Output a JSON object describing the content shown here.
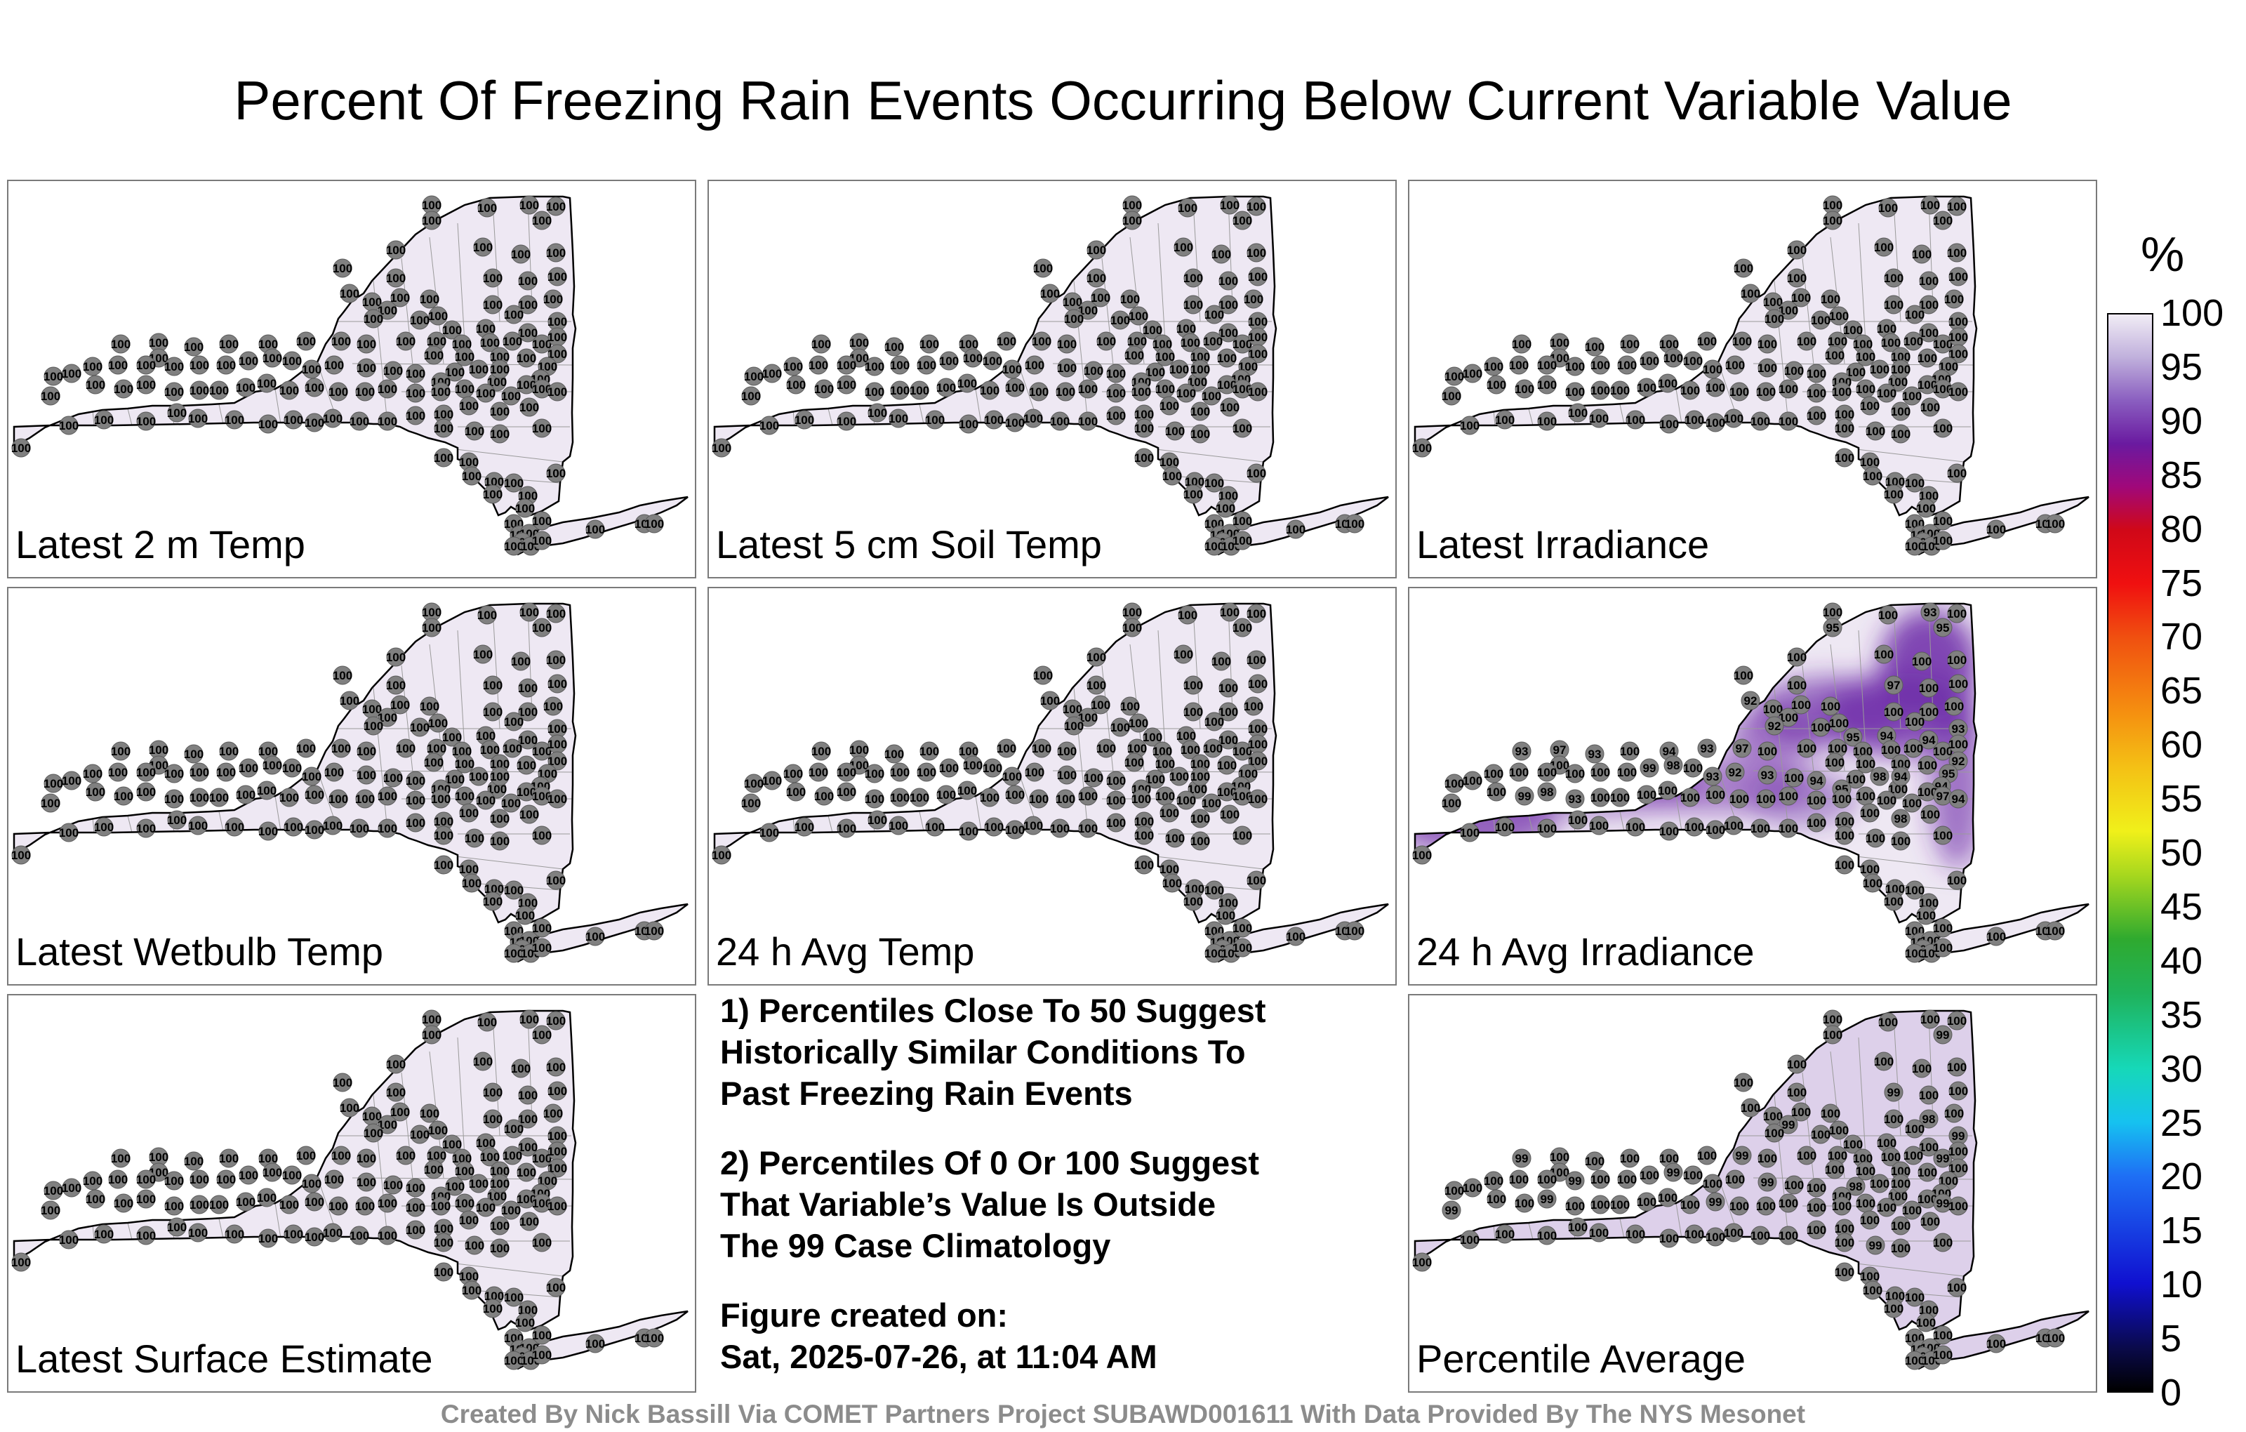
{
  "title": "Percent Of Freezing Rain Events Occurring Below Current Variable Value",
  "panels": [
    {
      "label": "Latest 2 m Temp",
      "mode": "uniform"
    },
    {
      "label": "Latest 5 cm Soil Temp",
      "mode": "uniform"
    },
    {
      "label": "Latest Irradiance",
      "mode": "uniform"
    },
    {
      "label": "Latest Wetbulb Temp",
      "mode": "uniform"
    },
    {
      "label": "24 h Avg Temp",
      "mode": "uniform"
    },
    {
      "label": "24 h Avg Irradiance",
      "mode": "irradiance"
    },
    {
      "label": "Latest Surface Estimate",
      "mode": "uniform"
    },
    {
      "label": "Percentile Average",
      "mode": "average"
    }
  ],
  "notes": {
    "note1": [
      "1) Percentiles Close To 50 Suggest",
      "Historically Similar Conditions To",
      "Past Freezing Rain Events"
    ],
    "note2": [
      "2) Percentiles Of 0 Or 100 Suggest",
      "That Variable’s Value Is Outside",
      "The 99 Case Climatology"
    ],
    "created_label": "Figure created on:",
    "created_value": "Sat, 2025-07-26, at 11:04 AM"
  },
  "colorbar": {
    "unit": "%",
    "ticks": [
      "100",
      "95",
      "90",
      "85",
      "80",
      "75",
      "70",
      "65",
      "60",
      "55",
      "50",
      "45",
      "40",
      "35",
      "30",
      "25",
      "20",
      "15",
      "10",
      "5",
      "0"
    ],
    "colors": {
      "fill_100": "#eee8f3",
      "fill_95": "#b49fd0",
      "fill_90": "#6d2aa8"
    }
  },
  "station_values": {
    "uniform_value": "100",
    "irradiance_examples": [
      "95",
      "95",
      "93",
      "97",
      "93",
      "94",
      "92",
      "93",
      "97",
      "94",
      "95",
      "92",
      "93",
      "94",
      "93",
      "97",
      "95",
      "94",
      "92",
      "94",
      "98",
      "95",
      "94",
      "93",
      "92",
      "93",
      "98",
      "99",
      "99",
      "98",
      "93",
      "97",
      "94",
      "98"
    ],
    "average_examples": [
      "99",
      "99",
      "99",
      "98",
      "99",
      "99",
      "99",
      "99",
      "98",
      "99",
      "99",
      "99",
      "99",
      "99",
      "99",
      "99",
      "99"
    ]
  },
  "footer": "Created By Nick Bassill Via COMET Partners Project SUBAWD001611 With Data Provided By The NYS Mesonet"
}
